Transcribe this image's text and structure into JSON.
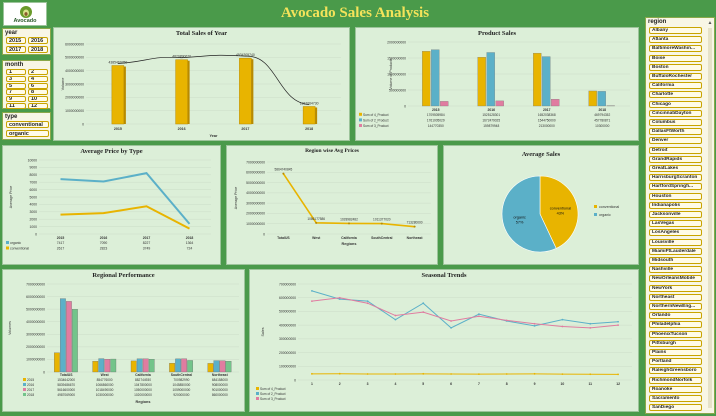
{
  "header": {
    "logo_text": "Avocado",
    "title": "Avocado Sales Analysis"
  },
  "slicers": {
    "year": {
      "label": "year",
      "items": [
        "2015",
        "2016",
        "2017",
        "2018"
      ]
    },
    "month": {
      "label": "month",
      "items": [
        "1",
        "2",
        "3",
        "4",
        "5",
        "6",
        "7",
        "8",
        "9",
        "10",
        "11",
        "12"
      ]
    },
    "type": {
      "label": "type",
      "items": [
        "conventional",
        "organic"
      ]
    },
    "region": {
      "label": "region",
      "items": [
        "Albany",
        "Atlanta",
        "BaltimoreWashin...",
        "Boise",
        "Boston",
        "BuffaloRochester",
        "California",
        "Charlotte",
        "Chicago",
        "CincinnatiDayton",
        "Columbus",
        "DallasFtWorth",
        "Denver",
        "Detroit",
        "GrandRapids",
        "GreatLakes",
        "HarrisburgScranton",
        "HartfordSpringfi...",
        "Houston",
        "Indianapolis",
        "Jacksonville",
        "LasVegas",
        "LosAngeles",
        "Louisville",
        "MiamiFtLauderdale",
        "Midsouth",
        "Nashville",
        "NewOrleansMobile",
        "NewYork",
        "Northeast",
        "NorthernNewEng...",
        "Orlando",
        "Philadelphia",
        "PhoenixTucson",
        "Pittsburgh",
        "Plains",
        "Portland",
        "RaleighGreensboro",
        "RichmondNorfolk",
        "Roanoke",
        "Sacramento",
        "SanDiego"
      ]
    }
  },
  "chart_data": [
    {
      "type": "bar",
      "title": "Total Sales of Year",
      "xlabel": "Year",
      "ylabel": "Volume",
      "categories": [
        "2015",
        "2016",
        "2017",
        "2018"
      ],
      "values": [
        4385469350,
        4820890620,
        4934305740,
        1312064730
      ],
      "value_labels": [
        "4385469350",
        "4820890620",
        "4934305740",
        "1312064730"
      ],
      "ylim": [
        0,
        6000000000
      ],
      "yticks": [
        "0",
        "1000000000",
        "2000000000",
        "3000000000",
        "4000000000",
        "5000000000",
        "6000000000"
      ]
    },
    {
      "type": "bar",
      "title": "Product Sales",
      "ylabel": "Volume of Products",
      "categories": [
        "2015",
        "2016",
        "2017",
        "2018"
      ],
      "series": [
        {
          "name": "Sum of 4_Product",
          "color": "#e8b400",
          "values": [
            1709505984,
            1525128301,
            1652038368,
            469794352
          ]
        },
        {
          "name": "Sum of 2_Product",
          "color": "#5bb0c8",
          "values": [
            1761005029,
            1672479025,
            1544750000,
            457780871
          ]
        },
        {
          "name": "Sum of 3_Product",
          "color": "#e07ca0",
          "values": [
            144770350,
            159879948,
            213000000,
            10300000
          ]
        }
      ],
      "table": [
        [
          "1709505984",
          "1525128301",
          "1652038368",
          "469794352"
        ],
        [
          "1761005029",
          "1672479025",
          "1544750000",
          "457780871"
        ],
        [
          "144770350",
          "159879948",
          "213000000",
          "10300000"
        ]
      ],
      "ylim": [
        0,
        2000000000
      ],
      "yticks": [
        "0",
        "500000000",
        "1000000000",
        "1500000000",
        "2000000000"
      ]
    },
    {
      "type": "line",
      "title": "Average Price by Type",
      "ylabel": "Average Price",
      "categories": [
        "2015",
        "2016",
        "2017",
        "2018"
      ],
      "series": [
        {
          "name": "organic",
          "color": "#5bb0c8",
          "values": [
            7417,
            7090,
            8227,
            1364
          ]
        },
        {
          "name": "conventional",
          "color": "#e8b400",
          "values": [
            2617,
            2823,
            3749,
            724
          ]
        }
      ],
      "table": [
        [
          "7417",
          "7090",
          "8227",
          "1364"
        ],
        [
          "2617",
          "2823",
          "3749",
          "724"
        ]
      ],
      "ylim": [
        0,
        10000
      ],
      "yticks": [
        "0",
        "1000",
        "2000",
        "3000",
        "4000",
        "5000",
        "6000",
        "7000",
        "8000",
        "9000",
        "10000"
      ]
    },
    {
      "type": "line",
      "title": "Region wise Avg Prices",
      "xlabel": "Regions",
      "ylabel": "Average Price",
      "categories": [
        "TotalUS",
        "West",
        "California",
        "SouthCentral",
        "Northeast"
      ],
      "values": [
        5864740845,
        1086177586,
        1028982482,
        1011377020,
        713280000
      ],
      "value_labels": [
        "5864740845",
        "1086177586",
        "1028982482",
        "1011377020",
        "713280000"
      ],
      "ylim": [
        0,
        7000000000
      ],
      "yticks": [
        "0",
        "1000000000",
        "2000000000",
        "3000000000",
        "4000000000",
        "5000000000",
        "6000000000",
        "7000000000"
      ]
    },
    {
      "type": "pie",
      "title": "Average Sales",
      "slices": [
        {
          "name": "conventional",
          "label": "conventional\n43%",
          "value": 43,
          "color": "#e8b400"
        },
        {
          "name": "organic",
          "label": "organic\n57%",
          "value": 57,
          "color": "#5bb0c8"
        }
      ]
    },
    {
      "type": "bar",
      "title": "Regional Performance",
      "xlabel": "Regions",
      "ylabel": "Volumes",
      "categories": [
        "TotalUS",
        "West",
        "California",
        "SouthCentral",
        "Northeast"
      ],
      "series": [
        {
          "name": "2015",
          "color": "#e8b400",
          "values": [
            1534642000,
            854776000,
            882744930,
            700982990,
            684158000
          ]
        },
        {
          "name": "2016",
          "color": "#5bb0c8",
          "values": [
            5839486670,
            1066860000,
            1047800000,
            1045850000,
            908000000
          ]
        },
        {
          "name": "2017",
          "color": "#e07ca0",
          "values": [
            5616600000,
            1018490000,
            1050000000,
            1059000000,
            901000000
          ]
        },
        {
          "name": "2018",
          "color": "#73c48a",
          "values": [
            4987069000,
            1030000000,
            1020000000,
            920000000,
            860000000
          ]
        }
      ],
      "table": [
        [
          "1534642000",
          "854776000",
          "882744930",
          "700982990",
          "684158000"
        ],
        [
          "5839486670",
          "1066860000",
          "1047800000",
          "1045850000",
          "908000000"
        ],
        [
          "5616600000",
          "1018490000",
          "1050000000",
          "1059000000",
          "901000000"
        ],
        [
          "4987069000",
          "1030000000",
          "1020000000",
          "920000000",
          "860000000"
        ]
      ],
      "ylim": [
        0,
        7000000000
      ],
      "yticks": [
        "0",
        "1000000000",
        "2000000000",
        "3000000000",
        "4000000000",
        "5000000000",
        "6000000000",
        "7000000000"
      ]
    },
    {
      "type": "line",
      "title": "Seasonal Trends",
      "ylabel": "Sales",
      "categories": [
        "1",
        "2",
        "3",
        "4",
        "5",
        "6",
        "7",
        "8",
        "9",
        "10",
        "11",
        "12"
      ],
      "series": [
        {
          "name": "Sum of 4_Product",
          "color": "#e8b400",
          "values": [
            45000000,
            46000000,
            44000000,
            44000000,
            45000000,
            44000000,
            43000000,
            44000000,
            45000000,
            43000000,
            42000000,
            41000000
          ]
        },
        {
          "name": "Sum of 2_Product",
          "color": "#5bb0c8",
          "values": [
            650000000,
            590000000,
            575000000,
            440000000,
            560000000,
            380000000,
            480000000,
            430000000,
            395000000,
            440000000,
            410000000,
            425000000
          ]
        },
        {
          "name": "Sum of 3_Product",
          "color": "#e07ca0",
          "values": [
            575000000,
            600000000,
            560000000,
            470000000,
            495000000,
            430000000,
            465000000,
            435000000,
            410000000,
            390000000,
            380000000,
            400000000
          ]
        }
      ],
      "ylim": [
        0,
        700000000
      ],
      "yticks": [
        "0",
        "100000000",
        "200000000",
        "300000000",
        "400000000",
        "500000000",
        "600000000",
        "700000000"
      ]
    }
  ]
}
